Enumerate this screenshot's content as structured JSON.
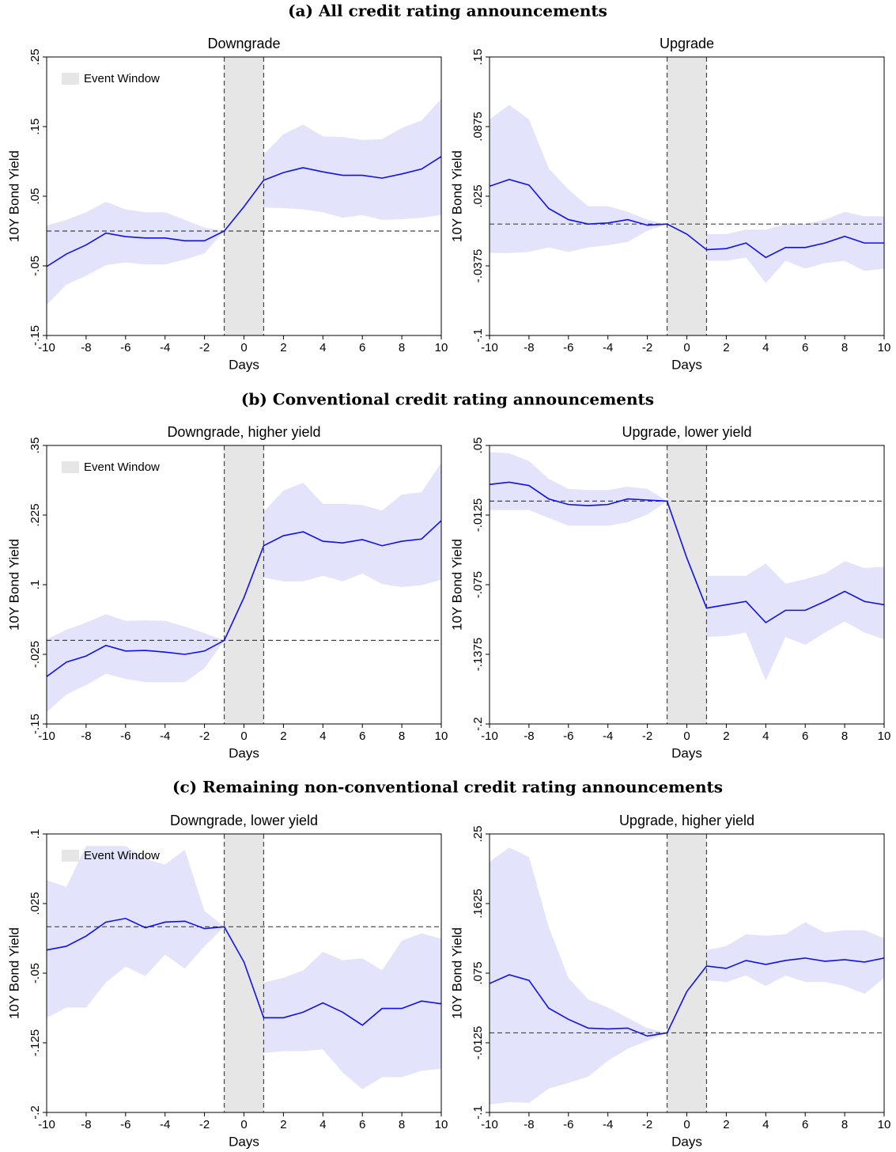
{
  "sections": [
    {
      "title": "(a) All credit rating announcements"
    },
    {
      "title": "(b) Conventional credit rating announcements"
    },
    {
      "title": "(c) Remaining non-conventional credit rating announcements"
    }
  ],
  "chart_data": [
    {
      "type": "line",
      "title": "Downgrade",
      "xlabel": "Days",
      "ylabel": "10Y Bond Yield",
      "x": [
        -10,
        -9,
        -8,
        -7,
        -6,
        -5,
        -4,
        -3,
        -2,
        -1,
        0,
        1,
        2,
        3,
        4,
        5,
        6,
        7,
        8,
        9,
        10
      ],
      "values": [
        -0.051,
        -0.033,
        -0.02,
        -0.003,
        -0.008,
        -0.01,
        -0.01,
        -0.014,
        -0.014,
        0,
        0.035,
        0.073,
        0.084,
        0.091,
        0.085,
        0.08,
        0.08,
        0.076,
        0.082,
        0.089,
        0.107
      ],
      "band_upper": [
        0.008,
        0.016,
        0.027,
        0.042,
        0.031,
        0.027,
        0.027,
        0.016,
        0.005,
        0,
        0.07,
        0.11,
        0.139,
        0.153,
        0.136,
        0.135,
        0.131,
        0.132,
        0.148,
        0.159,
        0.19
      ],
      "band_lower": [
        -0.106,
        -0.077,
        -0.064,
        -0.049,
        -0.045,
        -0.048,
        -0.048,
        -0.041,
        -0.032,
        0,
        0.002,
        0.034,
        0.033,
        0.031,
        0.027,
        0.019,
        0.023,
        0.016,
        0.017,
        0.019,
        0.023
      ],
      "color": "#1010f0",
      "band_color": "#e3e3fb",
      "event_window": {
        "x": [
          -1,
          1
        ],
        "label": "Event Window",
        "color": "#e6e6e6"
      },
      "legend": "upper left",
      "hline": 0,
      "xlim": [
        -10,
        10
      ],
      "xticks": [
        -10,
        -8,
        -6,
        -4,
        -2,
        0,
        2,
        4,
        6,
        8,
        10
      ],
      "ylim": [
        -0.15,
        0.25
      ],
      "yticks": [
        {
          "value": -0.15,
          "label": "-.15"
        },
        {
          "value": -0.05,
          "label": "-.05"
        },
        {
          "value": 0.05,
          "label": ".05"
        },
        {
          "value": 0.15,
          "label": ".15"
        },
        {
          "value": 0.25,
          "label": ".25"
        }
      ]
    },
    {
      "type": "line",
      "title": "Upgrade",
      "xlabel": "Days",
      "ylabel": "10Y Bond Yield",
      "x": [
        -10,
        -9,
        -8,
        -7,
        -6,
        -5,
        -4,
        -3,
        -2,
        -1,
        0,
        1,
        2,
        3,
        4,
        5,
        6,
        7,
        8,
        9,
        10
      ],
      "values": [
        0.034,
        0.04,
        0.035,
        0.014,
        0.004,
        0,
        0.001,
        0.004,
        -0.001,
        0,
        -0.009,
        -0.023,
        -0.022,
        -0.017,
        -0.03,
        -0.021,
        -0.021,
        -0.017,
        -0.011,
        -0.017,
        -0.017
      ],
      "band_upper": [
        0.094,
        0.107,
        0.094,
        0.05,
        0.031,
        0.016,
        0.016,
        0.011,
        0.004,
        0,
        -0.001,
        -0.009,
        -0.009,
        -0.005,
        -0.005,
        0,
        0,
        0.004,
        0.011,
        0.007,
        0.007
      ],
      "band_lower": [
        -0.026,
        -0.026,
        -0.025,
        -0.021,
        -0.025,
        -0.021,
        -0.019,
        -0.016,
        -0.006,
        0,
        -0.018,
        -0.033,
        -0.033,
        -0.03,
        -0.053,
        -0.033,
        -0.04,
        -0.035,
        -0.033,
        -0.042,
        -0.04
      ],
      "color": "#1010f0",
      "band_color": "#e3e3fb",
      "event_window": {
        "x": [
          -1,
          1
        ],
        "color": "#e6e6e6"
      },
      "hline": 0,
      "xlim": [
        -10,
        10
      ],
      "xticks": [
        -10,
        -8,
        -6,
        -4,
        -2,
        0,
        2,
        4,
        6,
        8,
        10
      ],
      "ylim": [
        -0.1,
        0.15
      ],
      "yticks": [
        {
          "value": -0.1,
          "label": "-.1"
        },
        {
          "value": -0.0375,
          "label": "-.0375"
        },
        {
          "value": 0.025,
          "label": ".025"
        },
        {
          "value": 0.0875,
          "label": ".0875"
        },
        {
          "value": 0.15,
          "label": ".15"
        }
      ]
    },
    {
      "type": "line",
      "title": "Downgrade, higher yield",
      "xlabel": "Days",
      "ylabel": "10Y Bond Yield",
      "x": [
        -10,
        -9,
        -8,
        -7,
        -6,
        -5,
        -4,
        -3,
        -2,
        -1,
        0,
        1,
        2,
        3,
        4,
        5,
        6,
        7,
        8,
        9,
        10
      ],
      "values": [
        -0.065,
        -0.039,
        -0.028,
        -0.009,
        -0.019,
        -0.018,
        -0.021,
        -0.025,
        -0.019,
        0,
        0.077,
        0.17,
        0.188,
        0.195,
        0.178,
        0.175,
        0.181,
        0.17,
        0.178,
        0.182,
        0.215
      ],
      "band_upper": [
        0.002,
        0.019,
        0.032,
        0.047,
        0.035,
        0.036,
        0.035,
        0.025,
        0.013,
        0,
        0.127,
        0.231,
        0.269,
        0.283,
        0.245,
        0.245,
        0.243,
        0.233,
        0.262,
        0.266,
        0.319
      ],
      "band_lower": [
        -0.129,
        -0.097,
        -0.08,
        -0.06,
        -0.069,
        -0.075,
        -0.075,
        -0.075,
        -0.05,
        0,
        0.042,
        0.113,
        0.106,
        0.106,
        0.116,
        0.106,
        0.12,
        0.101,
        0.096,
        0.099,
        0.109
      ],
      "color": "#1010f0",
      "band_color": "#e3e3fb",
      "event_window": {
        "x": [
          -1,
          1
        ],
        "label": "Event Window",
        "color": "#e6e6e6"
      },
      "legend": "upper left",
      "hline": 0,
      "xlim": [
        -10,
        10
      ],
      "xticks": [
        -10,
        -8,
        -6,
        -4,
        -2,
        0,
        2,
        4,
        6,
        8,
        10
      ],
      "ylim": [
        -0.15,
        0.35
      ],
      "yticks": [
        {
          "value": -0.15,
          "label": "-.15"
        },
        {
          "value": -0.025,
          "label": "-.025"
        },
        {
          "value": 0.1,
          "label": ".1"
        },
        {
          "value": 0.225,
          "label": ".225"
        },
        {
          "value": 0.35,
          "label": ".35"
        }
      ]
    },
    {
      "type": "line",
      "title": "Upgrade, lower yield",
      "xlabel": "Days",
      "ylabel": "10Y Bond Yield",
      "x": [
        -10,
        -9,
        -8,
        -7,
        -6,
        -5,
        -4,
        -3,
        -2,
        -1,
        0,
        1,
        2,
        3,
        4,
        5,
        6,
        7,
        8,
        9,
        10
      ],
      "values": [
        0.015,
        0.017,
        0.014,
        0.002,
        -0.003,
        -0.004,
        -0.003,
        0.002,
        0.001,
        0,
        -0.051,
        -0.096,
        -0.093,
        -0.09,
        -0.109,
        -0.098,
        -0.098,
        -0.09,
        -0.081,
        -0.09,
        -0.093
      ],
      "band_upper": [
        0.044,
        0.043,
        0.036,
        0.02,
        0.011,
        0.01,
        0.01,
        0.013,
        0.011,
        0,
        -0.019,
        -0.067,
        -0.067,
        -0.067,
        -0.056,
        -0.074,
        -0.07,
        -0.065,
        -0.054,
        -0.06,
        -0.059
      ],
      "band_lower": [
        -0.008,
        -0.008,
        -0.008,
        -0.015,
        -0.022,
        -0.022,
        -0.022,
        -0.019,
        -0.012,
        0,
        -0.077,
        -0.122,
        -0.121,
        -0.118,
        -0.161,
        -0.122,
        -0.129,
        -0.118,
        -0.108,
        -0.118,
        -0.124
      ],
      "color": "#1010f0",
      "band_color": "#e3e3fb",
      "event_window": {
        "x": [
          -1,
          1
        ],
        "color": "#e6e6e6"
      },
      "hline": 0,
      "xlim": [
        -10,
        10
      ],
      "xticks": [
        -10,
        -8,
        -6,
        -4,
        -2,
        0,
        2,
        4,
        6,
        8,
        10
      ],
      "ylim": [
        -0.2,
        0.05
      ],
      "yticks": [
        {
          "value": -0.2,
          "label": "-.2"
        },
        {
          "value": -0.1375,
          "label": "-.1375"
        },
        {
          "value": -0.075,
          "label": "-.075"
        },
        {
          "value": -0.0125,
          "label": "-.0125"
        },
        {
          "value": 0.05,
          "label": ".05"
        }
      ]
    },
    {
      "type": "line",
      "title": "Downgrade, lower yield",
      "xlabel": "Days",
      "ylabel": "10Y Bond Yield",
      "x": [
        -10,
        -9,
        -8,
        -7,
        -6,
        -5,
        -4,
        -3,
        -2,
        -1,
        0,
        1,
        2,
        3,
        4,
        5,
        6,
        7,
        8,
        9,
        10
      ],
      "values": [
        -0.025,
        -0.021,
        -0.01,
        0.005,
        0.009,
        -0.001,
        0.005,
        0.006,
        -0.002,
        0,
        -0.038,
        -0.098,
        -0.098,
        -0.092,
        -0.082,
        -0.092,
        -0.106,
        -0.088,
        -0.088,
        -0.08,
        -0.083
      ],
      "band_upper": [
        0.05,
        0.043,
        0.087,
        0.087,
        0.087,
        0.073,
        0.067,
        0.083,
        0.017,
        0,
        -0.008,
        -0.06,
        -0.055,
        -0.047,
        -0.027,
        -0.036,
        -0.034,
        -0.047,
        -0.015,
        -0.007,
        -0.013
      ],
      "band_lower": [
        -0.098,
        -0.087,
        -0.087,
        -0.06,
        -0.043,
        -0.053,
        -0.03,
        -0.045,
        -0.021,
        0,
        -0.068,
        -0.136,
        -0.134,
        -0.134,
        -0.132,
        -0.157,
        -0.175,
        -0.162,
        -0.162,
        -0.155,
        -0.153
      ],
      "color": "#1010f0",
      "band_color": "#e3e3fb",
      "event_window": {
        "x": [
          -1,
          1
        ],
        "label": "Event Window",
        "color": "#e6e6e6"
      },
      "legend": "upper left",
      "hline": 0,
      "xlim": [
        -10,
        10
      ],
      "xticks": [
        -10,
        -8,
        -6,
        -4,
        -2,
        0,
        2,
        4,
        6,
        8,
        10
      ],
      "ylim": [
        -0.2,
        0.1
      ],
      "yticks": [
        {
          "value": -0.2,
          "label": "-.2"
        },
        {
          "value": -0.125,
          "label": "-.125"
        },
        {
          "value": -0.05,
          "label": "-.05"
        },
        {
          "value": 0.025,
          "label": ".025"
        },
        {
          "value": 0.1,
          "label": ".1"
        }
      ]
    },
    {
      "type": "line",
      "title": "Upgrade, higher yield",
      "xlabel": "Days",
      "ylabel": "10Y Bond Yield",
      "x": [
        -10,
        -9,
        -8,
        -7,
        -6,
        -5,
        -4,
        -3,
        -2,
        -1,
        0,
        1,
        2,
        3,
        4,
        5,
        6,
        7,
        8,
        9,
        10
      ],
      "values": [
        0.062,
        0.073,
        0.066,
        0.031,
        0.017,
        0.006,
        0.005,
        0.006,
        -0.004,
        0,
        0.052,
        0.084,
        0.081,
        0.091,
        0.086,
        0.091,
        0.094,
        0.09,
        0.092,
        0.089,
        0.094
      ],
      "band_upper": [
        0.215,
        0.233,
        0.221,
        0.133,
        0.069,
        0.042,
        0.032,
        0.019,
        0.006,
        0,
        0.074,
        0.104,
        0.109,
        0.124,
        0.122,
        0.124,
        0.139,
        0.126,
        0.129,
        0.129,
        0.119
      ],
      "band_lower": [
        -0.09,
        -0.087,
        -0.088,
        -0.07,
        -0.063,
        -0.055,
        -0.035,
        -0.02,
        -0.01,
        0,
        0.034,
        0.066,
        0.064,
        0.072,
        0.059,
        0.072,
        0.064,
        0.064,
        0.059,
        0.049,
        0.069
      ],
      "color": "#1010f0",
      "band_color": "#e3e3fb",
      "event_window": {
        "x": [
          -1,
          1
        ],
        "color": "#e6e6e6"
      },
      "hline": 0,
      "xlim": [
        -10,
        10
      ],
      "xticks": [
        -10,
        -8,
        -6,
        -4,
        -2,
        0,
        2,
        4,
        6,
        8,
        10
      ],
      "ylim": [
        -0.1,
        0.25
      ],
      "yticks": [
        {
          "value": -0.1,
          "label": "-.1"
        },
        {
          "value": -0.0125,
          "label": "-.0125"
        },
        {
          "value": 0.075,
          "label": ".075"
        },
        {
          "value": 0.1625,
          "label": ".1625"
        },
        {
          "value": 0.25,
          "label": ".25"
        }
      ]
    }
  ]
}
